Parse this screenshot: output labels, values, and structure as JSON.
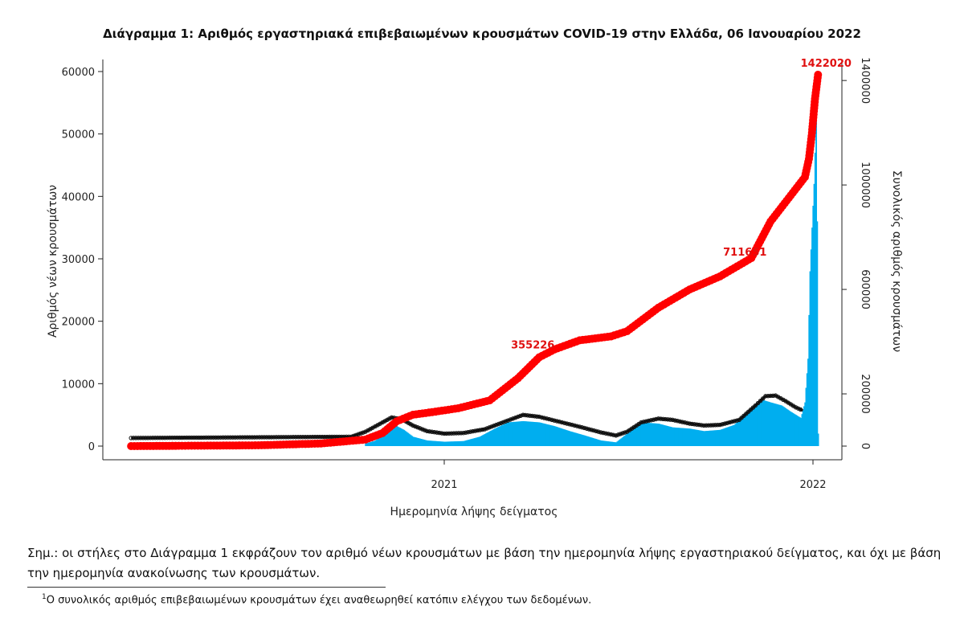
{
  "chart_data": {
    "type": "bar+line",
    "title": "Διάγραμμα 1: Αριθμός εργαστηριακά επιβεβαιωμένων κρουσμάτων COVID-19 στην Ελλάδα, 06 Ιανουαρίου 2022",
    "xlabel": "Ημερομηνία λήψης δείγματος",
    "ylabel_left": "Αριθμός νέων κρουσμάτων",
    "ylabel_right": "Συνολικός αριθμός κρουσμάτων",
    "x_ticks": [
      "2021",
      "2022"
    ],
    "y_left_ticks": [
      "0",
      "10000",
      "20000",
      "30000",
      "40000",
      "50000",
      "60000"
    ],
    "y_left_lim": [
      0,
      60000
    ],
    "y_right_ticks": [
      "0",
      "200000",
      "600000",
      "1000000",
      "1400000"
    ],
    "y_right_lim": [
      0,
      1422020
    ],
    "grid": false,
    "series": [
      {
        "kind": "bar",
        "color": "#00aeef",
        "points": [
          [
            "2020-10-15",
            400
          ],
          [
            "2020-10-25",
            900
          ],
          [
            "2020-11-01",
            2000
          ],
          [
            "2020-11-08",
            2900
          ],
          [
            "2020-11-15",
            3200
          ],
          [
            "2020-11-22",
            2600
          ],
          [
            "2020-12-01",
            1500
          ],
          [
            "2020-12-15",
            900
          ],
          [
            "2021-01-01",
            700
          ],
          [
            "2021-01-20",
            800
          ],
          [
            "2021-02-05",
            1500
          ],
          [
            "2021-02-20",
            2800
          ],
          [
            "2021-03-05",
            3800
          ],
          [
            "2021-03-20",
            4000
          ],
          [
            "2021-04-05",
            3800
          ],
          [
            "2021-04-20",
            3200
          ],
          [
            "2021-05-05",
            2400
          ],
          [
            "2021-05-20",
            1700
          ],
          [
            "2021-06-05",
            900
          ],
          [
            "2021-06-20",
            600
          ],
          [
            "2021-07-01",
            2000
          ],
          [
            "2021-07-15",
            3800
          ],
          [
            "2021-08-01",
            3600
          ],
          [
            "2021-08-15",
            3000
          ],
          [
            "2021-09-01",
            2800
          ],
          [
            "2021-09-15",
            2400
          ],
          [
            "2021-10-01",
            2600
          ],
          [
            "2021-10-15",
            3400
          ],
          [
            "2021-11-01",
            6000
          ],
          [
            "2021-11-10",
            7500
          ],
          [
            "2021-11-20",
            7000
          ],
          [
            "2021-12-01",
            6500
          ],
          [
            "2021-12-10",
            5500
          ],
          [
            "2021-12-20",
            4500
          ],
          [
            "2021-12-24",
            7000
          ],
          [
            "2021-12-27",
            14000
          ],
          [
            "2021-12-29",
            28000
          ],
          [
            "2021-12-31",
            35000
          ],
          [
            "2022-01-02",
            42000
          ],
          [
            "2022-01-04",
            52000
          ],
          [
            "2022-01-05",
            36000
          ],
          [
            "2022-01-06",
            2000
          ]
        ]
      },
      {
        "kind": "line",
        "name": "",
        "color": "#111111",
        "points": [
          [
            "2020-02-26",
            1300
          ],
          [
            "2020-10-01",
            1500
          ],
          [
            "2020-10-15",
            2300
          ],
          [
            "2020-11-01",
            3800
          ],
          [
            "2020-11-10",
            4600
          ],
          [
            "2020-11-20",
            4300
          ],
          [
            "2020-12-01",
            3300
          ],
          [
            "2020-12-15",
            2400
          ],
          [
            "2021-01-01",
            2000
          ],
          [
            "2021-01-20",
            2100
          ],
          [
            "2021-02-10",
            2700
          ],
          [
            "2021-03-05",
            4100
          ],
          [
            "2021-03-20",
            5000
          ],
          [
            "2021-04-05",
            4700
          ],
          [
            "2021-04-25",
            3900
          ],
          [
            "2021-05-15",
            3100
          ],
          [
            "2021-06-05",
            2200
          ],
          [
            "2021-06-20",
            1700
          ],
          [
            "2021-07-01",
            2300
          ],
          [
            "2021-07-15",
            3800
          ],
          [
            "2021-08-01",
            4400
          ],
          [
            "2021-08-15",
            4200
          ],
          [
            "2021-09-01",
            3600
          ],
          [
            "2021-09-15",
            3300
          ],
          [
            "2021-10-01",
            3400
          ],
          [
            "2021-10-20",
            4200
          ],
          [
            "2021-11-05",
            6500
          ],
          [
            "2021-11-15",
            8000
          ],
          [
            "2021-11-25",
            8100
          ],
          [
            "2021-12-05",
            7200
          ],
          [
            "2021-12-15",
            6200
          ],
          [
            "2021-12-22",
            5700
          ]
        ]
      },
      {
        "kind": "line",
        "name": "",
        "axis": "right",
        "color": "#ff0000",
        "points": [
          [
            "2020-02-26",
            0
          ],
          [
            "2020-07-01",
            3000
          ],
          [
            "2020-09-01",
            10000
          ],
          [
            "2020-10-15",
            25000
          ],
          [
            "2020-11-01",
            50000
          ],
          [
            "2020-11-15",
            95000
          ],
          [
            "2020-12-01",
            120000
          ],
          [
            "2020-12-20",
            130000
          ],
          [
            "2021-01-15",
            145000
          ],
          [
            "2021-02-15",
            175000
          ],
          [
            "2021-03-15",
            260000
          ],
          [
            "2021-04-05",
            340000
          ],
          [
            "2021-04-20",
            370000
          ],
          [
            "2021-05-15",
            405000
          ],
          [
            "2021-06-15",
            420000
          ],
          [
            "2021-07-01",
            440000
          ],
          [
            "2021-08-01",
            530000
          ],
          [
            "2021-09-01",
            600000
          ],
          [
            "2021-10-01",
            650000
          ],
          [
            "2021-11-01",
            720000
          ],
          [
            "2021-11-20",
            860000
          ],
          [
            "2021-12-10",
            960000
          ],
          [
            "2021-12-24",
            1030000
          ],
          [
            "2021-12-28",
            1100000
          ],
          [
            "2021-12-31",
            1200000
          ],
          [
            "2022-01-03",
            1330000
          ],
          [
            "2022-01-06",
            1422020
          ]
        ]
      }
    ],
    "annotations": [
      {
        "date": "2021-04-05",
        "value": 355226,
        "text": "355226"
      },
      {
        "date": "2021-11-01",
        "value": 711651,
        "text": "711651"
      },
      {
        "date": "2022-01-06",
        "value": 1422020,
        "text": "1422020"
      }
    ]
  },
  "note": "Σημ.: οι στήλες στο Διάγραμμα 1 εκφράζουν τον αριθμό νέων κρουσμάτων με βάση την ημερομηνία λήψης εργαστηριακού δείγματος, και όχι με βάση την ημερομηνία ανακοίνωσης των κρουσμάτων.",
  "footnote_marker": "1",
  "footnote": "Ο συνολικός αριθμός επιβεβαιωμένων κρουσμάτων έχει αναθεωρηθεί κατόπιν ελέγχου των δεδομένων."
}
